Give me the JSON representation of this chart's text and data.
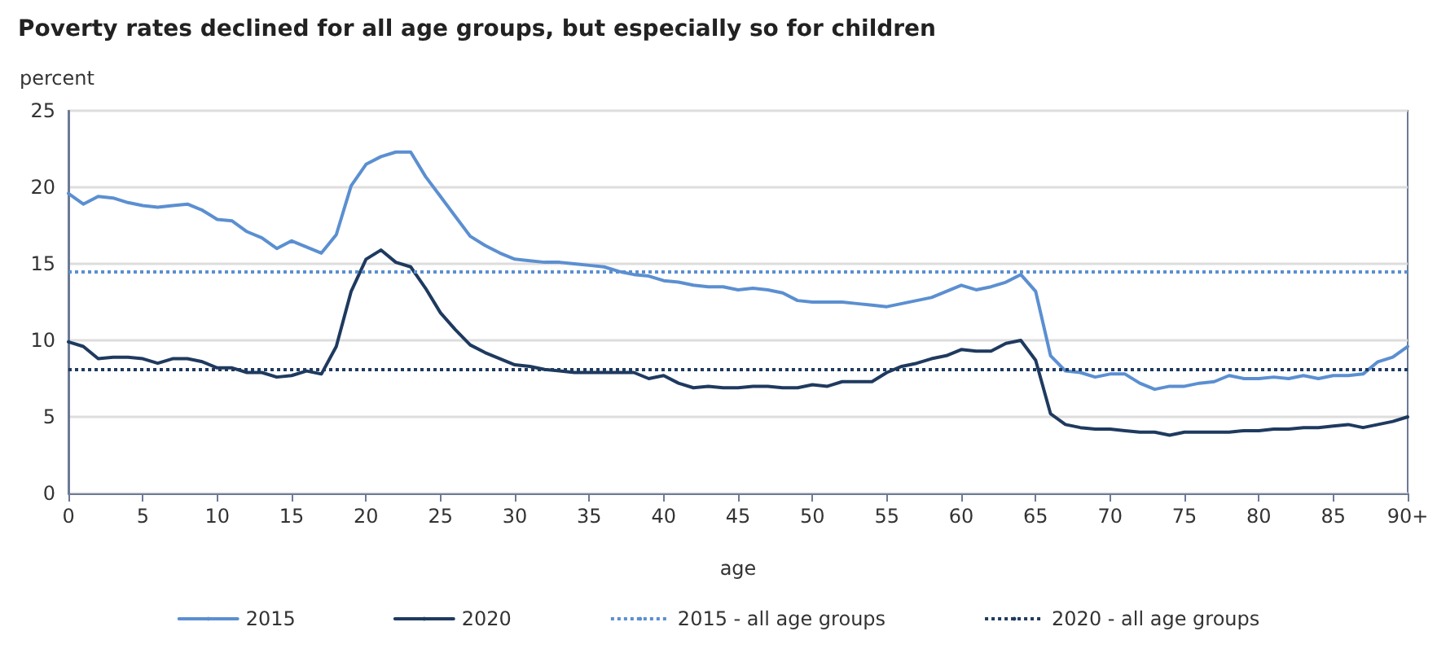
{
  "chart_data": {
    "type": "line",
    "title": "Poverty rates declined for all age groups, but especially so for children",
    "ylabel": "percent",
    "xlabel": "age",
    "categories": [
      "0",
      null,
      null,
      null,
      null,
      "5",
      null,
      null,
      null,
      null,
      "10",
      null,
      null,
      null,
      null,
      "15",
      null,
      null,
      null,
      null,
      "20",
      null,
      null,
      null,
      null,
      "25",
      null,
      null,
      null,
      null,
      "30",
      null,
      null,
      null,
      null,
      "35",
      null,
      null,
      null,
      null,
      "40",
      null,
      null,
      null,
      null,
      "45",
      null,
      null,
      null,
      null,
      "50",
      null,
      null,
      null,
      null,
      "55",
      null,
      null,
      null,
      null,
      "60",
      null,
      null,
      null,
      null,
      "65",
      null,
      null,
      null,
      null,
      "70",
      null,
      null,
      null,
      null,
      "75",
      null,
      null,
      null,
      null,
      "80",
      null,
      null,
      null,
      null,
      "85",
      null,
      null,
      null,
      null,
      "90+"
    ],
    "series": [
      {
        "name": "2015",
        "color": "#5b8fd1",
        "values": [
          19.6,
          18.9,
          19.4,
          19.3,
          19.0,
          18.8,
          18.7,
          18.8,
          18.9,
          18.5,
          17.9,
          17.8,
          17.1,
          16.7,
          16.0,
          16.5,
          16.1,
          15.7,
          16.9,
          20.1,
          21.5,
          22.0,
          22.3,
          22.3,
          20.7,
          19.4,
          18.1,
          16.8,
          16.2,
          15.7,
          15.3,
          15.2,
          15.1,
          15.1,
          15.0,
          14.9,
          14.8,
          14.5,
          14.3,
          14.2,
          13.9,
          13.8,
          13.6,
          13.5,
          13.5,
          13.3,
          13.4,
          13.3,
          13.1,
          12.6,
          12.5,
          12.5,
          12.5,
          12.4,
          12.3,
          12.2,
          12.4,
          12.6,
          12.8,
          13.2,
          13.6,
          13.3,
          13.5,
          13.8,
          14.3,
          13.2,
          9.0,
          8.0,
          7.9,
          7.6,
          7.8,
          7.8,
          7.2,
          6.8,
          7.0,
          7.0,
          7.2,
          7.3,
          7.7,
          7.5,
          7.5,
          7.6,
          7.5,
          7.7,
          7.5,
          7.7,
          7.7,
          7.8,
          8.6,
          8.9,
          9.6
        ]
      },
      {
        "name": "2020",
        "color": "#1f3a5f",
        "values": [
          9.9,
          9.6,
          8.8,
          8.9,
          8.9,
          8.8,
          8.5,
          8.8,
          8.8,
          8.6,
          8.2,
          8.2,
          7.9,
          7.9,
          7.6,
          7.7,
          8.0,
          7.8,
          9.6,
          13.2,
          15.3,
          15.9,
          15.1,
          14.8,
          13.4,
          11.8,
          10.7,
          9.7,
          9.2,
          8.8,
          8.4,
          8.3,
          8.1,
          8.0,
          7.9,
          7.9,
          7.9,
          7.9,
          7.9,
          7.5,
          7.7,
          7.2,
          6.9,
          7.0,
          6.9,
          6.9,
          7.0,
          7.0,
          6.9,
          6.9,
          7.1,
          7.0,
          7.3,
          7.3,
          7.3,
          7.9,
          8.3,
          8.5,
          8.8,
          9.0,
          9.4,
          9.3,
          9.3,
          9.8,
          10.0,
          8.7,
          5.2,
          4.5,
          4.3,
          4.2,
          4.2,
          4.1,
          4.0,
          4.0,
          3.8,
          4.0,
          4.0,
          4.0,
          4.0,
          4.1,
          4.1,
          4.2,
          4.2,
          4.3,
          4.3,
          4.4,
          4.5,
          4.3,
          4.5,
          4.7,
          5.0
        ]
      }
    ],
    "ref_lines": [
      {
        "axis": "y",
        "value": 14.5,
        "label": "2015 - all age groups",
        "color": "#5b8fd1",
        "line_style": "dotted"
      },
      {
        "axis": "y",
        "value": 8.1,
        "label": "2020 - all age groups",
        "color": "#1f3a5f",
        "line_style": "dotted"
      }
    ],
    "ylim": [
      0,
      25
    ],
    "yticks": [
      0,
      5,
      10,
      15,
      20,
      25
    ],
    "grid": "y",
    "legend": "bottom",
    "marker": "none",
    "line_style": "solid"
  }
}
